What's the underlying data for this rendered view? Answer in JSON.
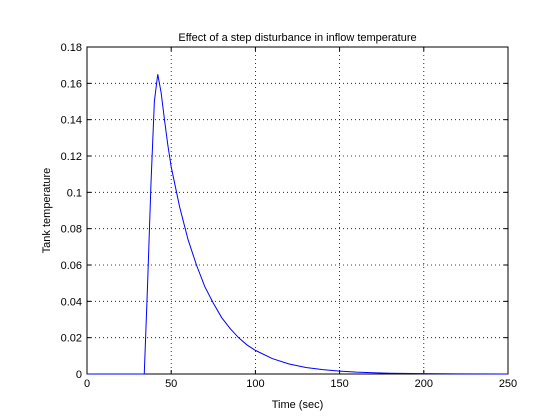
{
  "chart_data": {
    "type": "line",
    "title": "Effect of a step disturbance in inflow temperature",
    "xlabel": "Time (sec)",
    "ylabel": "Tank temperature",
    "xlim": [
      0,
      250
    ],
    "ylim": [
      0,
      0.18
    ],
    "xticks": [
      0,
      50,
      100,
      150,
      200,
      250
    ],
    "yticks": [
      0,
      0.02,
      0.04,
      0.06,
      0.08,
      0.1,
      0.12,
      0.14,
      0.16,
      0.18
    ],
    "xtick_labels": [
      "0",
      "50",
      "100",
      "150",
      "200",
      "250"
    ],
    "ytick_labels": [
      "0",
      "0.02",
      "0.04",
      "0.06",
      "0.08",
      "0.1",
      "0.12",
      "0.14",
      "0.16",
      "0.18"
    ],
    "grid": true,
    "series": [
      {
        "color": "#0000ff",
        "x": [
          0,
          10,
          20,
          30,
          34,
          36,
          38,
          40,
          42,
          44,
          46,
          48,
          50,
          55,
          60,
          65,
          70,
          75,
          80,
          85,
          90,
          95,
          100,
          110,
          120,
          130,
          140,
          150,
          160,
          170,
          180,
          200,
          220,
          250
        ],
        "y": [
          0,
          0,
          0,
          0,
          0,
          0.05,
          0.105,
          0.15,
          0.165,
          0.155,
          0.14,
          0.126,
          0.114,
          0.092,
          0.074,
          0.06,
          0.048,
          0.039,
          0.031,
          0.025,
          0.02,
          0.016,
          0.013,
          0.0085,
          0.0055,
          0.0036,
          0.0024,
          0.0016,
          0.001,
          0.0007,
          0.0004,
          0.0002,
          0.0001,
          0
        ]
      }
    ]
  }
}
